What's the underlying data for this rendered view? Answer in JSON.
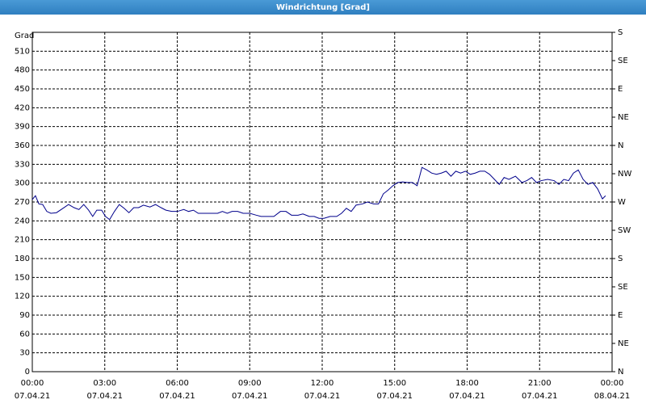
{
  "chart_data": {
    "type": "line",
    "title": "Windrichtung [Grad]",
    "y_label": "Grad",
    "x": [
      0,
      0.13,
      0.27,
      0.43,
      0.6,
      0.77,
      1,
      1.27,
      1.5,
      1.73,
      1.93,
      2.13,
      2.33,
      2.5,
      2.67,
      2.87,
      3.03,
      3.2,
      3.4,
      3.6,
      3.8,
      4,
      4.2,
      4.4,
      4.6,
      4.87,
      5.1,
      5.33,
      5.53,
      5.77,
      6,
      6.27,
      6.47,
      6.67,
      6.87,
      7.13,
      7.4,
      7.67,
      7.87,
      8.07,
      8.27,
      8.5,
      8.73,
      9,
      9.27,
      9.47,
      9.73,
      10,
      10.27,
      10.5,
      10.73,
      11,
      11.2,
      11.47,
      11.67,
      11.87,
      12.07,
      12.33,
      12.6,
      12.8,
      13,
      13.2,
      13.4,
      13.67,
      13.87,
      14.13,
      14.33,
      14.53,
      14.73,
      14.93,
      15.13,
      15.33,
      15.53,
      15.73,
      15.93,
      16.13,
      16.33,
      16.53,
      16.73,
      16.93,
      17.13,
      17.33,
      17.53,
      17.73,
      17.93,
      18.13,
      18.33,
      18.53,
      18.73,
      18.93,
      19.13,
      19.33,
      19.53,
      19.73,
      20,
      20.27,
      20.47,
      20.67,
      20.87,
      21.07,
      21.33,
      21.6,
      21.8,
      22,
      22.2,
      22.4,
      22.6,
      22.8,
      23,
      23.2,
      23.4,
      23.6,
      23.73
    ],
    "series": [
      {
        "color": "#00008b",
        "values": [
          274,
          280,
          267,
          266,
          255,
          252,
          253,
          260,
          266,
          261,
          258,
          266,
          257,
          247,
          257,
          257,
          247,
          242,
          255,
          266,
          260,
          253,
          261,
          261,
          265,
          262,
          266,
          261,
          257,
          255,
          255,
          258,
          255,
          257,
          252,
          252,
          252,
          252,
          255,
          252,
          255,
          255,
          252,
          252,
          249,
          247,
          247,
          247,
          255,
          255,
          249,
          249,
          251,
          247,
          247,
          244,
          244,
          247,
          247,
          252,
          260,
          255,
          265,
          267,
          270,
          267,
          267,
          283,
          289,
          296,
          301,
          302,
          301,
          301,
          296,
          325,
          321,
          316,
          314,
          316,
          319,
          311,
          319,
          316,
          319,
          314,
          316,
          319,
          319,
          314,
          306,
          298,
          309,
          306,
          311,
          301,
          304,
          309,
          301,
          304,
          306,
          304,
          298,
          306,
          304,
          316,
          321,
          306,
          298,
          301,
          291,
          275,
          280
        ]
      }
    ],
    "xlim": [
      0,
      24
    ],
    "xticks": [
      {
        "value": 0,
        "label": "00:00"
      },
      {
        "value": 3,
        "label": "03:00"
      },
      {
        "value": 6,
        "label": "06:00"
      },
      {
        "value": 9,
        "label": "09:00"
      },
      {
        "value": 12,
        "label": "12:00"
      },
      {
        "value": 15,
        "label": "15:00"
      },
      {
        "value": 18,
        "label": "18:00"
      },
      {
        "value": 21,
        "label": "21:00"
      },
      {
        "value": 24,
        "label": "00:00"
      }
    ],
    "xtick_dates": [
      "07.04.21",
      "07.04.21",
      "07.04.21",
      "07.04.21",
      "07.04.21",
      "07.04.21",
      "07.04.21",
      "07.04.21",
      "08.04.21"
    ],
    "ylim": [
      0,
      540
    ],
    "yticks": [
      0,
      30,
      60,
      90,
      120,
      150,
      180,
      210,
      240,
      270,
      300,
      330,
      360,
      390,
      420,
      450,
      480,
      510
    ],
    "y2lim": [
      0,
      540
    ],
    "y2ticks": [
      {
        "value": 0,
        "label": "N"
      },
      {
        "value": 45,
        "label": "NE"
      },
      {
        "value": 90,
        "label": "E"
      },
      {
        "value": 135,
        "label": "SE"
      },
      {
        "value": 180,
        "label": "S"
      },
      {
        "value": 225,
        "label": "SW"
      },
      {
        "value": 270,
        "label": "W"
      },
      {
        "value": 315,
        "label": "NW"
      },
      {
        "value": 360,
        "label": "N"
      },
      {
        "value": 405,
        "label": "NE"
      },
      {
        "value": 450,
        "label": "E"
      },
      {
        "value": 495,
        "label": "SE"
      },
      {
        "value": 540,
        "label": "S"
      }
    ],
    "grid": true
  }
}
